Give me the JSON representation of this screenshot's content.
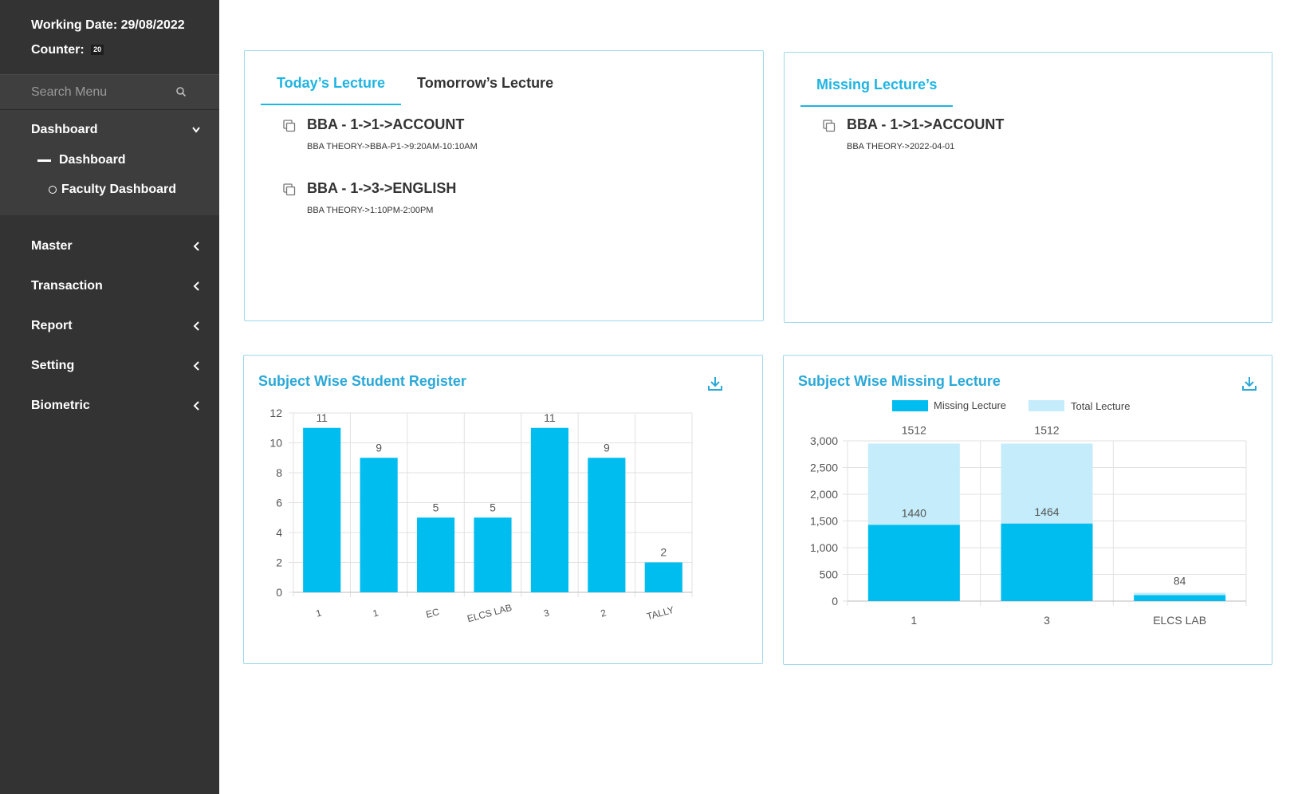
{
  "sidebar": {
    "working_date": "Working Date: 29/08/2022",
    "counter_label": "Counter:",
    "counter_value": "20",
    "search_placeholder": "Search Menu",
    "dashboard_group": {
      "label": "Dashboard",
      "children": [
        {
          "label": "Dashboard"
        },
        {
          "label": "Faculty Dashboard"
        }
      ]
    },
    "menu": [
      {
        "label": "Master"
      },
      {
        "label": "Transaction"
      },
      {
        "label": "Report"
      },
      {
        "label": "Setting"
      },
      {
        "label": "Biometric"
      }
    ]
  },
  "lecture_card": {
    "tabs": [
      {
        "label": "Today’s Lecture",
        "active": true
      },
      {
        "label": "Tomorrow’s Lecture",
        "active": false
      }
    ],
    "items": [
      {
        "title": "BBA - 1->1->ACCOUNT",
        "detail": "BBA THEORY->BBA-P1->9:20AM-10:10AM"
      },
      {
        "title": "BBA - 1->3->ENGLISH",
        "detail": "BBA THEORY->1:10PM-2:00PM"
      }
    ]
  },
  "missing_card": {
    "tab": "Missing Lecture’s",
    "items": [
      {
        "title": "BBA - 1->1->ACCOUNT",
        "detail": "BBA THEORY->2022-04-01"
      }
    ]
  },
  "colors": {
    "accent": "#1fb4e2",
    "bar": "#00bdef",
    "bar_light": "#c4ecfa",
    "sidebar_bg": "#333333",
    "card_border": "#9fd9ec"
  },
  "chart_data": [
    {
      "type": "bar",
      "title": "Subject Wise Student Register",
      "categories": [
        "1",
        "1",
        "EC",
        "ELCS LAB",
        "3",
        "2",
        "TALLY"
      ],
      "values": [
        11,
        9,
        5,
        5,
        11,
        9,
        2
      ],
      "ylim": [
        0,
        12
      ],
      "yticks": [
        0,
        2,
        4,
        6,
        8,
        10,
        12
      ],
      "grid": true,
      "data_labels": true,
      "xlabel": "",
      "ylabel": ""
    },
    {
      "type": "bar",
      "title": "Subject Wise Missing Lecture",
      "stacked": true,
      "categories": [
        "1",
        "3",
        "ELCS LAB"
      ],
      "series": [
        {
          "name": "Missing Lecture",
          "values": [
            1440,
            1464,
            84
          ],
          "color": "#00bdef"
        },
        {
          "name": "Total Lecture",
          "values": [
            1512,
            1512,
            0
          ],
          "color": "#c4ecfa"
        }
      ],
      "ylim": [
        0,
        3000
      ],
      "yticks": [
        "0",
        "500",
        "1,000",
        "1,500",
        "2,000",
        "2,500",
        "3,000"
      ],
      "legend": "top",
      "grid": true,
      "xlabel": "",
      "ylabel": ""
    }
  ]
}
